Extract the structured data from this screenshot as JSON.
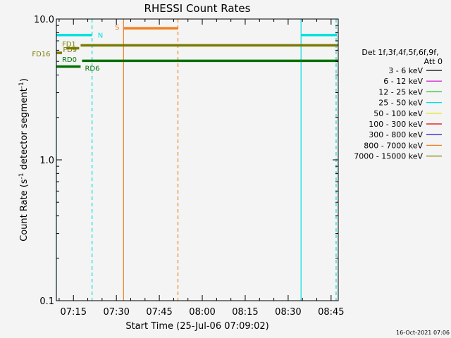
{
  "chart_data": {
    "type": "line",
    "title": "RHESSI Count Rates",
    "xlabel": "Start Time (25-Jul-06 07:09:02)",
    "ylabel_main": "Count Rate (s",
    "ylabel_sup1": "-1",
    "ylabel_mid": " detector segment",
    "ylabel_sup2": "-1",
    "ylabel_end": ")",
    "y_scale": "log",
    "ylim": [
      0.1,
      10.0
    ],
    "xlim": [
      "07:09:02",
      "08:47:30"
    ],
    "yticks": [
      {
        "value": 10.0,
        "label": "10.0"
      },
      {
        "value": 1.0,
        "label": "1.0"
      },
      {
        "value": 0.1,
        "label": "0.1"
      }
    ],
    "xticks": [
      "07:15",
      "07:30",
      "07:45",
      "08:00",
      "08:15",
      "08:30",
      "08:45"
    ],
    "legend": {
      "placement": "right",
      "header": [
        "Det 1f,3f,4f,5f,6f,9f,",
        "Att 0"
      ],
      "entries": [
        {
          "label": "3 - 6 keV",
          "color": "#000000"
        },
        {
          "label": "6 - 12 keV",
          "color": "#d000d0"
        },
        {
          "label": "12 - 25 keV",
          "color": "#20c020"
        },
        {
          "label": "25 - 50 keV",
          "color": "#00e0e0"
        },
        {
          "label": "50 - 100 keV",
          "color": "#e0e000"
        },
        {
          "label": "100 - 300 keV",
          "color": "#e00000"
        },
        {
          "label": "300 - 800 keV",
          "color": "#0000c0"
        },
        {
          "label": "800 - 7000 keV",
          "color": "#f08020"
        },
        {
          "label": "7000 - 15000 keV",
          "color": "#7a7a00"
        }
      ]
    },
    "intervals": [
      {
        "name": "N",
        "color": "#00e0e0",
        "y": 7.7,
        "start": "07:09:02",
        "end": "07:21:30",
        "label_time": "07:23:30",
        "label_y": 7.7
      },
      {
        "name": "N",
        "color": "#00e0e0",
        "y": 7.7,
        "start": "08:34:30",
        "end": "08:47:00",
        "label_time": null,
        "label_y": null
      },
      {
        "name": "S",
        "color": "#f08020",
        "y": 8.6,
        "start": "07:32:30",
        "end": "07:51:30",
        "label_time": "07:29:30",
        "label_y": 8.8
      },
      {
        "name": "FD1",
        "color": "#7a7a00",
        "y": 6.5,
        "start": "07:17:30",
        "end": "08:47:30",
        "label_time": "07:11:00",
        "label_y": 6.7
      },
      {
        "name": "FD9",
        "color": "#7a7a00",
        "y": 6.2,
        "start": "07:12:30",
        "end": "07:17:00",
        "label_time": "07:11:20",
        "label_y": 6.1
      },
      {
        "name": "FD16",
        "color": "#7a7a00",
        "y": 5.75,
        "start": "07:09:02",
        "end": "07:11:00",
        "label_time": "07:00:30",
        "label_y": 5.7
      },
      {
        "name": "RD0",
        "color": "#007000",
        "y": 5.05,
        "start": "07:18:00",
        "end": "08:47:30",
        "label_time": "07:11:00",
        "label_y": 5.2
      },
      {
        "name": "RD6",
        "color": "#007000",
        "y": 4.6,
        "start": "07:09:02",
        "end": "07:17:30",
        "label_time": "07:19:00",
        "label_y": 4.5
      }
    ],
    "vlines": [
      {
        "time": "07:09:02",
        "color": "#00e0e0",
        "style": "solid"
      },
      {
        "time": "07:21:30",
        "color": "#00e0e0",
        "style": "dashed"
      },
      {
        "time": "07:32:30",
        "color": "#f08020",
        "style": "solid"
      },
      {
        "time": "07:51:30",
        "color": "#f08020",
        "style": "dashed"
      },
      {
        "time": "08:34:30",
        "color": "#00e0e0",
        "style": "solid"
      },
      {
        "time": "08:46:45",
        "color": "#00e0e0",
        "style": "dashed"
      }
    ],
    "footer": "16-Oct-2021 07:06"
  }
}
